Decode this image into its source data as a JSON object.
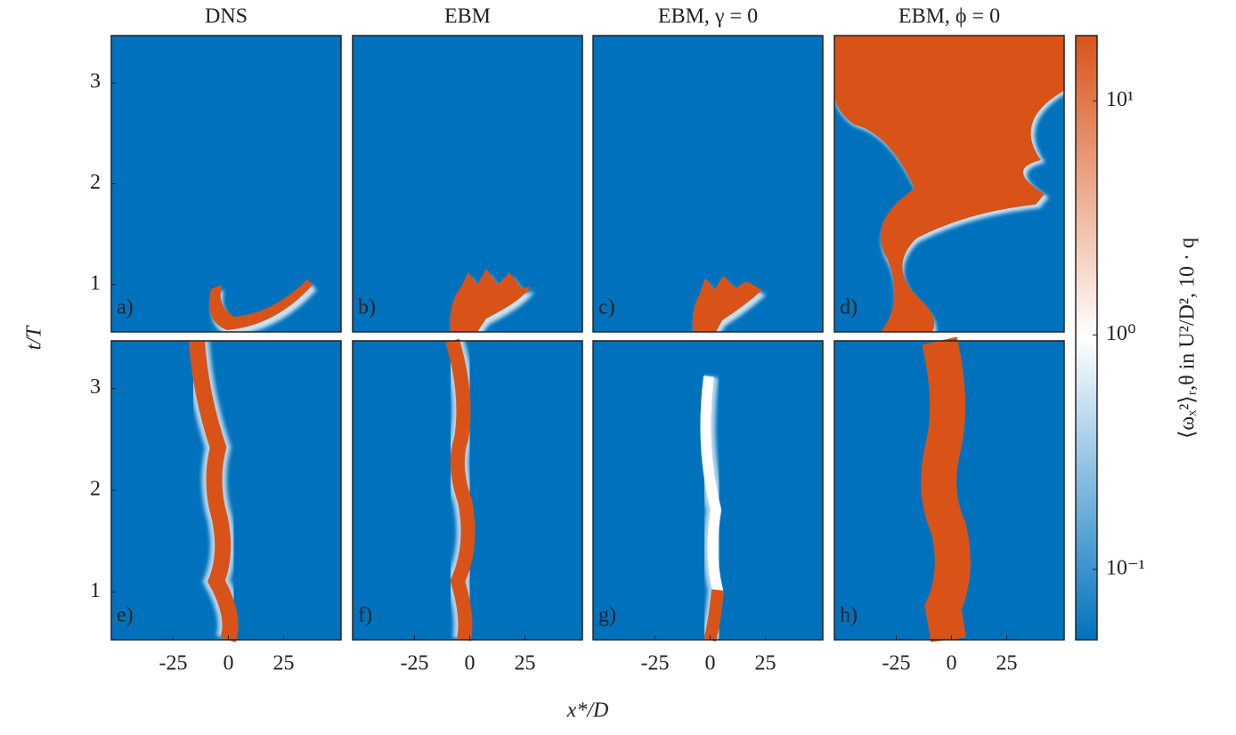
{
  "chart_data": {
    "type": "heatmap",
    "titles": [
      "DNS",
      "EBM",
      "EBM, γ = 0",
      "EBM, ϕ = 0"
    ],
    "panel_labels": [
      "a)",
      "b)",
      "c)",
      "d)",
      "e)",
      "f)",
      "g)",
      "h)"
    ],
    "xlabel": "x*/D",
    "ylabel": "t/T",
    "xlim": [
      -53,
      51
    ],
    "xticks": [
      -25,
      0,
      25
    ],
    "ylim": [
      0.53,
      3.47
    ],
    "yticks": [
      1,
      2,
      3
    ],
    "colorbar": {
      "label": "⟨ωₓ²⟩ᵣ,θ in U²/D², 10 · q",
      "log": true,
      "clim": [
        0.05,
        19
      ],
      "ticks": [
        {
          "value": 0.1,
          "label": "10⁻¹"
        },
        {
          "value": 1,
          "label": "10⁰"
        },
        {
          "value": 10,
          "label": "10¹"
        }
      ],
      "colors": [
        "#0072bd",
        "#ffffff",
        "#d95319"
      ]
    }
  }
}
